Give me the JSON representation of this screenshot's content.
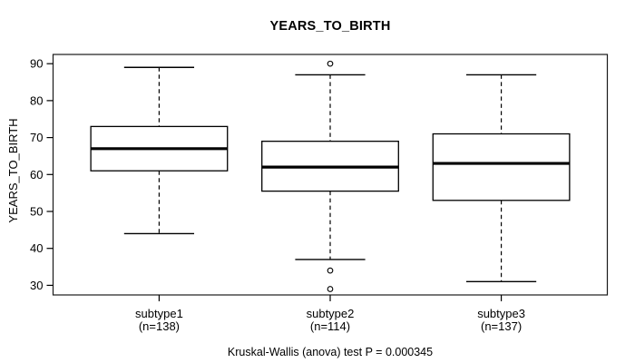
{
  "chart_data": {
    "type": "boxplot",
    "title": "YEARS_TO_BIRTH",
    "ylabel": "YEARS_TO_BIRTH",
    "xlabel": "",
    "ylim": [
      27.4,
      92.5
    ],
    "yticks": [
      30,
      40,
      50,
      60,
      70,
      80,
      90
    ],
    "grid": false,
    "legend": false,
    "categories": [
      "subtype1",
      "subtype2",
      "subtype3"
    ],
    "sample_sizes": [
      138,
      114,
      137
    ],
    "x_tick_labels_line1": [
      "subtype1",
      "subtype2",
      "subtype3"
    ],
    "x_tick_labels_line2": [
      "(n=138)",
      "(n=114)",
      "(n=137)"
    ],
    "series": [
      {
        "name": "subtype1",
        "n": 138,
        "whisker_low": 44,
        "q1": 61,
        "median": 67,
        "q3": 73,
        "whisker_high": 89,
        "outliers": []
      },
      {
        "name": "subtype2",
        "n": 114,
        "whisker_low": 37,
        "q1": 55.5,
        "median": 62,
        "q3": 69,
        "whisker_high": 87,
        "outliers": [
          90,
          34,
          29
        ]
      },
      {
        "name": "subtype3",
        "n": 137,
        "whisker_low": 31,
        "q1": 53,
        "median": 63,
        "q3": 71,
        "whisker_high": 87,
        "outliers": []
      }
    ],
    "annotation": "Kruskal-Wallis (anova) test P = 0.000345"
  },
  "colors": {
    "line": "#000000",
    "frame": "#1a1a1a",
    "background": "#ffffff",
    "box_fill": "#ffffff"
  }
}
